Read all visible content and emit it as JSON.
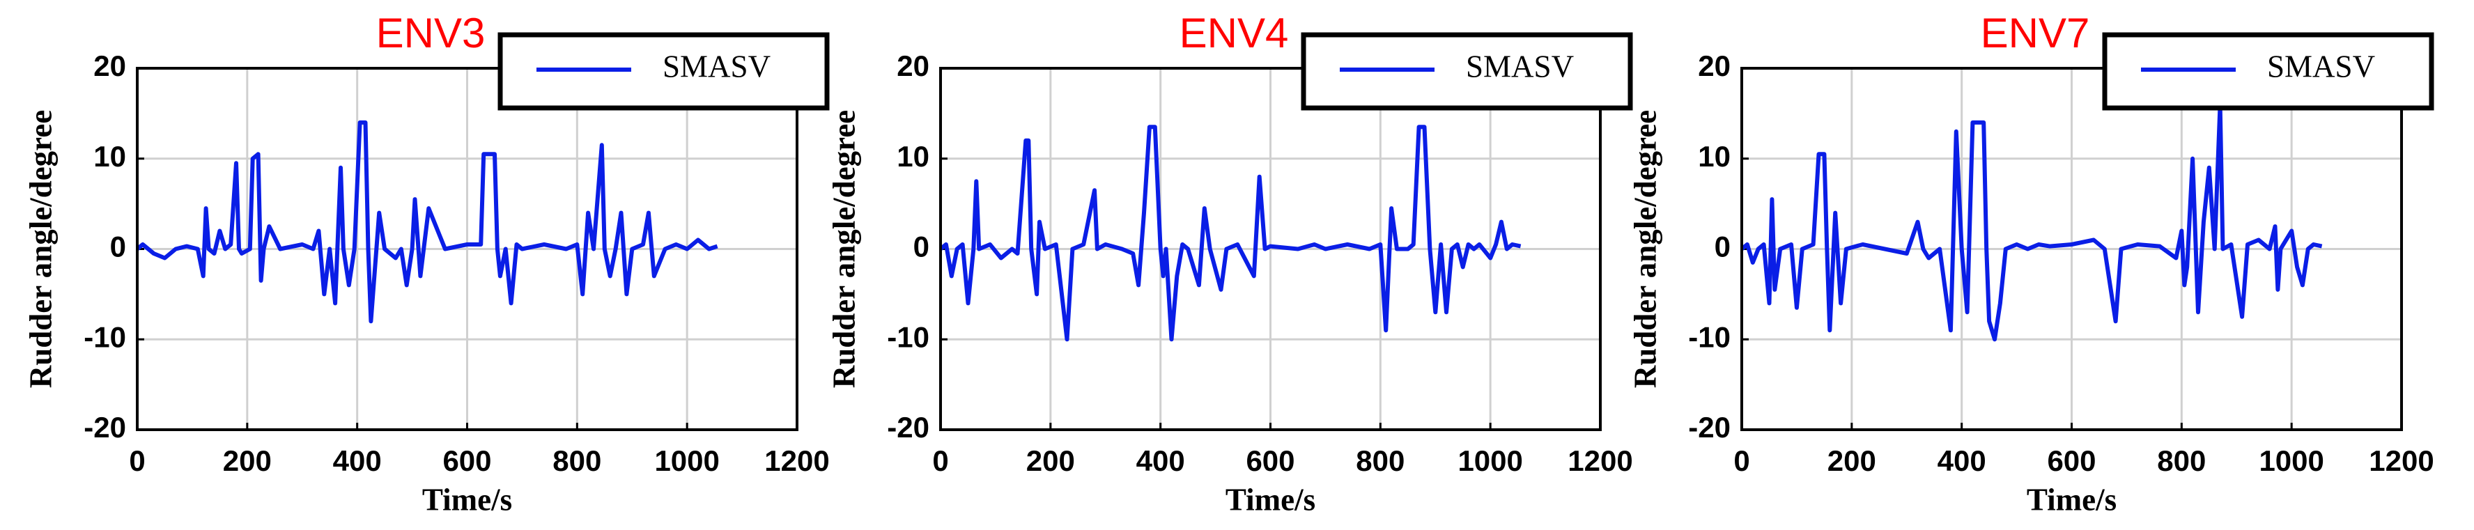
{
  "chart_data": [
    {
      "type": "line",
      "title": "ENV3",
      "xlabel": "Time/s",
      "ylabel": "Rudder angle/degree",
      "xlim": [
        0,
        1200
      ],
      "xticks": [
        0,
        200,
        400,
        600,
        800,
        1000,
        1200
      ],
      "ylim": [
        -20,
        20
      ],
      "yticks": [
        -20,
        -10,
        0,
        10,
        20
      ],
      "grid": true,
      "legend": "upper right",
      "x": [
        0,
        10,
        30,
        50,
        70,
        90,
        110,
        120,
        125,
        130,
        140,
        150,
        160,
        170,
        180,
        185,
        190,
        205,
        210,
        220,
        225,
        230,
        240,
        260,
        300,
        320,
        330,
        340,
        350,
        360,
        370,
        375,
        385,
        395,
        405,
        415,
        420,
        425,
        435,
        440,
        450,
        470,
        480,
        490,
        500,
        505,
        515,
        530,
        560,
        600,
        625,
        630,
        650,
        655,
        660,
        670,
        680,
        690,
        700,
        740,
        780,
        800,
        810,
        820,
        830,
        845,
        850,
        860,
        870,
        880,
        890,
        900,
        920,
        930,
        940,
        960,
        980,
        1000,
        1020,
        1040,
        1055
      ],
      "series": [
        {
          "name": "SMASV",
          "color": "#0a1ee6",
          "values": [
            0,
            0.5,
            -0.5,
            -1,
            0,
            0.3,
            0,
            -3,
            4.5,
            0,
            -0.5,
            2,
            0,
            0.5,
            9.5,
            0,
            -0.5,
            0,
            10,
            10.5,
            -3.5,
            0,
            2.5,
            0,
            0.5,
            0,
            2,
            -5,
            0,
            -6,
            9,
            0,
            -4,
            0,
            14,
            14,
            0,
            -8,
            0,
            4,
            0,
            -1,
            0,
            -4,
            0,
            5.5,
            -3,
            4.5,
            0,
            0.5,
            0.5,
            10.5,
            10.5,
            0,
            -3,
            0,
            -6,
            0.5,
            0,
            0.5,
            0,
            0.5,
            -5,
            4,
            0,
            11.5,
            0,
            -3,
            0,
            4,
            -5,
            0,
            0.5,
            4,
            -3,
            0,
            0.5,
            0,
            1,
            0,
            0.3
          ]
        }
      ]
    },
    {
      "type": "line",
      "title": "ENV4",
      "xlabel": "Time/s",
      "ylabel": "Rudder angle/degree",
      "xlim": [
        0,
        1200
      ],
      "xticks": [
        0,
        200,
        400,
        600,
        800,
        1000,
        1200
      ],
      "ylim": [
        -20,
        20
      ],
      "yticks": [
        -20,
        -10,
        0,
        10,
        20
      ],
      "grid": true,
      "legend": "upper right",
      "x": [
        0,
        10,
        20,
        30,
        40,
        50,
        60,
        65,
        70,
        90,
        110,
        130,
        140,
        155,
        160,
        165,
        175,
        180,
        190,
        210,
        230,
        240,
        260,
        280,
        285,
        300,
        330,
        350,
        360,
        370,
        380,
        390,
        400,
        405,
        410,
        420,
        430,
        440,
        450,
        470,
        480,
        490,
        510,
        520,
        540,
        570,
        580,
        590,
        600,
        650,
        680,
        700,
        740,
        780,
        800,
        810,
        820,
        830,
        850,
        860,
        870,
        880,
        890,
        900,
        910,
        920,
        930,
        940,
        950,
        960,
        970,
        980,
        1000,
        1010,
        1020,
        1030,
        1040,
        1055
      ],
      "series": [
        {
          "name": "SMASV",
          "color": "#0a1ee6",
          "values": [
            0,
            0.5,
            -3,
            0,
            0.5,
            -6,
            0,
            7.5,
            0,
            0.5,
            -1,
            0,
            -0.5,
            12,
            12,
            0,
            -5,
            3,
            0,
            0.5,
            -10,
            0,
            0.5,
            6.5,
            0,
            0.5,
            0,
            -0.5,
            -4,
            4,
            13.5,
            13.5,
            0,
            -3,
            0,
            -10,
            -3,
            0.5,
            0,
            -4,
            4.5,
            0,
            -4.5,
            0,
            0.5,
            -3,
            8,
            0,
            0.3,
            0,
            0.5,
            0,
            0.5,
            0,
            0.5,
            -9,
            4.5,
            0,
            0,
            0.5,
            13.5,
            13.5,
            0,
            -7,
            0.5,
            -7,
            0,
            0.5,
            -2,
            0.5,
            0,
            0.5,
            -1,
            0.5,
            3,
            0,
            0.5,
            0.3
          ]
        }
      ]
    },
    {
      "type": "line",
      "title": "ENV7",
      "xlabel": "Time/s",
      "ylabel": "Rudder angle/degree",
      "xlim": [
        0,
        1200
      ],
      "xticks": [
        0,
        200,
        400,
        600,
        800,
        1000,
        1200
      ],
      "ylim": [
        -20,
        20
      ],
      "yticks": [
        -20,
        -10,
        0,
        10,
        20
      ],
      "grid": true,
      "legend": "upper right",
      "x": [
        0,
        10,
        20,
        30,
        40,
        50,
        55,
        60,
        70,
        90,
        100,
        110,
        130,
        140,
        150,
        155,
        160,
        170,
        180,
        190,
        220,
        260,
        300,
        320,
        330,
        340,
        360,
        380,
        390,
        400,
        410,
        420,
        440,
        445,
        450,
        460,
        470,
        480,
        500,
        520,
        540,
        560,
        600,
        640,
        660,
        680,
        690,
        720,
        760,
        790,
        800,
        805,
        810,
        820,
        830,
        840,
        850,
        860,
        870,
        875,
        890,
        910,
        920,
        940,
        960,
        970,
        975,
        980,
        1000,
        1010,
        1020,
        1030,
        1040,
        1055
      ],
      "series": [
        {
          "name": "SMASV",
          "color": "#0a1ee6",
          "values": [
            0,
            0.5,
            -1.5,
            0,
            0.5,
            -6,
            5.5,
            -4.5,
            0,
            0.5,
            -6.5,
            0,
            0.5,
            10.5,
            10.5,
            0,
            -9,
            4,
            -6,
            0,
            0.5,
            0,
            -0.5,
            3,
            0,
            -1,
            0,
            -9,
            13,
            0,
            -7,
            14,
            14,
            0,
            -8,
            -10,
            -6,
            0,
            0.5,
            0,
            0.5,
            0.3,
            0.5,
            1,
            0,
            -8,
            0,
            0.5,
            0.3,
            -1,
            2,
            -4,
            -2,
            10,
            -7,
            3,
            9,
            0,
            16,
            0,
            0.5,
            -7.5,
            0.5,
            1,
            0,
            2.5,
            -4.5,
            0,
            2,
            -2,
            -4,
            0,
            0.5,
            0.3
          ]
        }
      ]
    }
  ]
}
